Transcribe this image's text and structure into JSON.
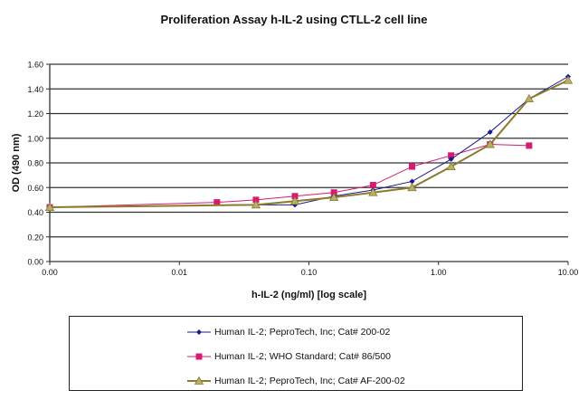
{
  "chart_data": {
    "type": "line",
    "title": "Proliferation Assay h-IL-2 using CTLL-2 cell line",
    "xlabel": "h-IL-2 (ng/ml) [log scale]",
    "ylabel": "OD (490 nm)",
    "x_scale": "log",
    "xlim": [
      0.001,
      10
    ],
    "ylim": [
      0,
      1.6
    ],
    "x_tick_labels": [
      "0.00",
      "0.01",
      "0.10",
      "1.00",
      "10.00"
    ],
    "y_tick_labels": [
      "0.00",
      "0.20",
      "0.40",
      "0.60",
      "0.80",
      "1.00",
      "1.20",
      "1.40",
      "1.60"
    ],
    "grid": "horizontal",
    "legend_position": "bottom",
    "series": [
      {
        "name": "Human IL-2; PeproTech, Inc; Cat# 200-02",
        "color": "#1a1a8c",
        "marker": "diamond",
        "x": [
          0.001,
          0.039,
          0.078,
          0.156,
          0.3125,
          0.625,
          1.25,
          2.5,
          5,
          10
        ],
        "y": [
          0.44,
          0.46,
          0.46,
          0.53,
          0.58,
          0.65,
          0.83,
          1.05,
          1.32,
          1.5
        ]
      },
      {
        "name": "Human IL-2; WHO Standard; Cat# 86/500",
        "color": "#d81b72",
        "marker": "square",
        "x": [
          0.001,
          0.0195,
          0.039,
          0.078,
          0.156,
          0.3125,
          0.625,
          1.25,
          2.5,
          5
        ],
        "y": [
          0.44,
          0.48,
          0.5,
          0.53,
          0.56,
          0.62,
          0.77,
          0.86,
          0.95,
          0.94
        ]
      },
      {
        "name": "Human IL-2; PeproTech, Inc; Cat# AF-200-02",
        "color": "#8b7a2e",
        "marker": "triangle",
        "x": [
          0.001,
          0.039,
          0.078,
          0.156,
          0.3125,
          0.625,
          1.25,
          2.5,
          5,
          10
        ],
        "y": [
          0.44,
          0.46,
          0.49,
          0.52,
          0.56,
          0.6,
          0.77,
          0.95,
          1.32,
          1.47
        ]
      }
    ]
  }
}
